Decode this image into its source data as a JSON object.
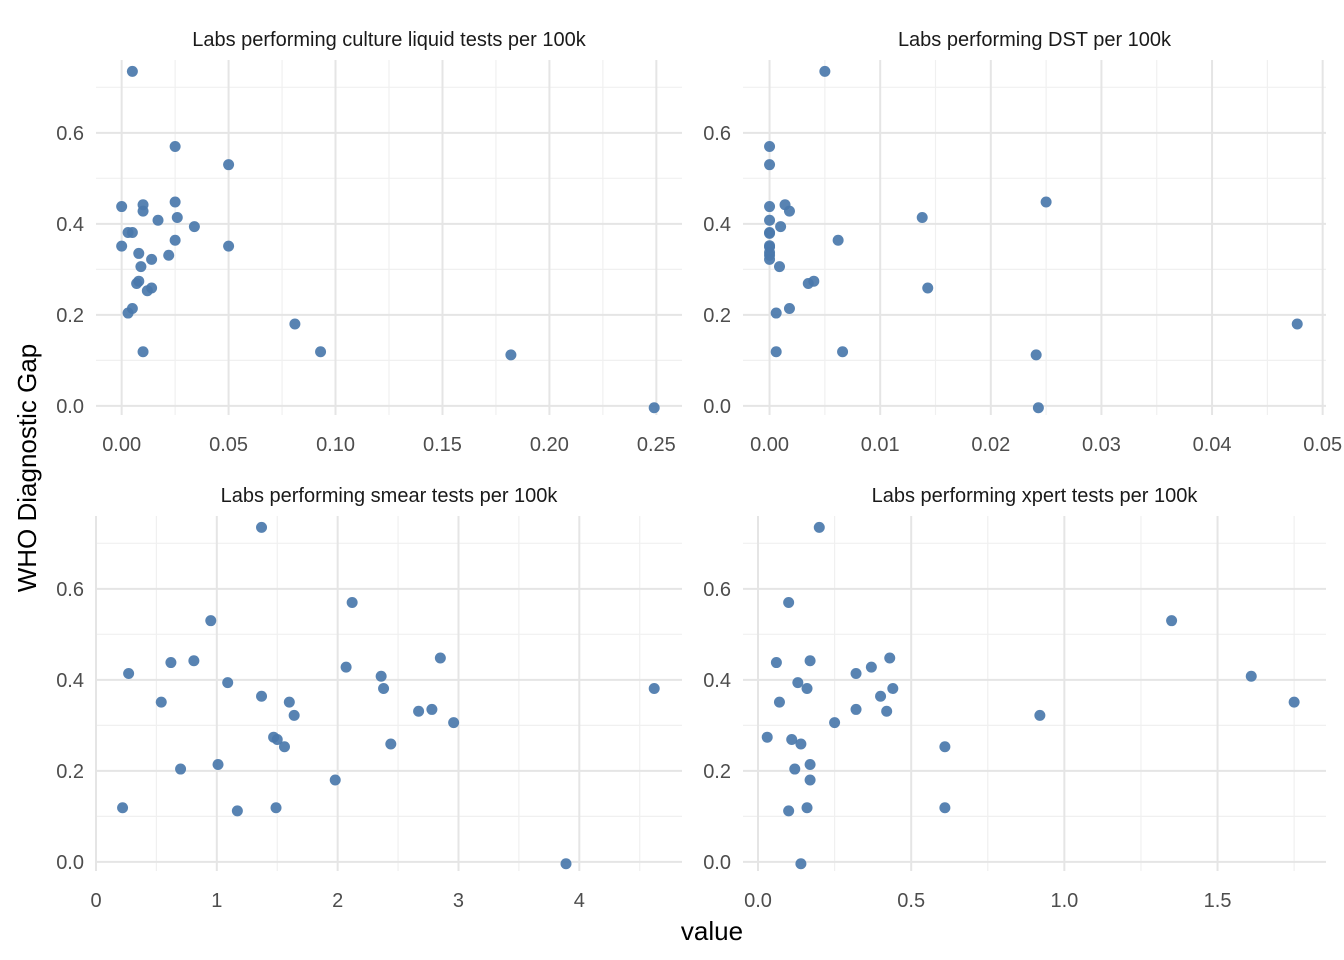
{
  "chart_data": {
    "type": "scatter",
    "xlabel": "value",
    "ylabel": "WHO Diagnostic Gap",
    "point_color": "#4a78ab",
    "grid": true,
    "y_ticks": [
      0.0,
      0.2,
      0.4,
      0.6
    ],
    "y_tick_labels": [
      "0.0",
      "0.2",
      "0.4",
      "0.6"
    ],
    "ylim": [
      -0.02,
      0.76
    ],
    "facets": [
      {
        "title": "Labs performing culture liquid tests per 100k",
        "xlim": [
          -0.012,
          0.262
        ],
        "x_ticks": [
          0,
          0.05,
          0.1,
          0.15,
          0.2,
          0.25
        ],
        "x_tick_labels": [
          "0.00",
          "0.05",
          "0.10",
          "0.15",
          "0.20",
          "0.25"
        ],
        "points": [
          [
            0.005,
            0.735
          ],
          [
            0.025,
            0.57
          ],
          [
            0.05,
            0.53
          ],
          [
            0.0,
            0.438
          ],
          [
            0.01,
            0.442
          ],
          [
            0.01,
            0.428
          ],
          [
            0.025,
            0.448
          ],
          [
            0.026,
            0.414
          ],
          [
            0.017,
            0.408
          ],
          [
            0.034,
            0.394
          ],
          [
            0.003,
            0.381
          ],
          [
            0.005,
            0.381
          ],
          [
            0.025,
            0.364
          ],
          [
            0.0,
            0.351
          ],
          [
            0.05,
            0.351
          ],
          [
            0.008,
            0.335
          ],
          [
            0.022,
            0.331
          ],
          [
            0.014,
            0.322
          ],
          [
            0.009,
            0.306
          ],
          [
            0.008,
            0.274
          ],
          [
            0.007,
            0.269
          ],
          [
            0.014,
            0.259
          ],
          [
            0.012,
            0.253
          ],
          [
            0.005,
            0.214
          ],
          [
            0.003,
            0.204
          ],
          [
            0.081,
            0.18
          ],
          [
            0.01,
            0.119
          ],
          [
            0.093,
            0.119
          ],
          [
            0.182,
            0.112
          ],
          [
            0.249,
            -0.004
          ]
        ]
      },
      {
        "title": "Labs performing DST per 100k",
        "xlim": [
          -0.0024,
          0.0503
        ],
        "x_ticks": [
          0,
          0.01,
          0.02,
          0.03,
          0.04,
          0.05
        ],
        "x_tick_labels": [
          "0.00",
          "0.01",
          "0.02",
          "0.03",
          "0.04",
          "0.05"
        ],
        "points": [
          [
            0.005,
            0.735
          ],
          [
            0.0,
            0.57
          ],
          [
            0.0,
            0.53
          ],
          [
            0.0,
            0.438
          ],
          [
            0.0014,
            0.442
          ],
          [
            0.0018,
            0.428
          ],
          [
            0.025,
            0.448
          ],
          [
            0.0138,
            0.414
          ],
          [
            0.0,
            0.408
          ],
          [
            0.001,
            0.394
          ],
          [
            0.0,
            0.381
          ],
          [
            0.0,
            0.379
          ],
          [
            0.0062,
            0.364
          ],
          [
            0.0,
            0.352
          ],
          [
            0.0,
            0.349
          ],
          [
            0.0,
            0.337
          ],
          [
            0.0,
            0.331
          ],
          [
            0.0,
            0.322
          ],
          [
            0.0009,
            0.306
          ],
          [
            0.004,
            0.274
          ],
          [
            0.0035,
            0.269
          ],
          [
            0.0143,
            0.259
          ],
          [
            0.0018,
            0.214
          ],
          [
            0.0006,
            0.204
          ],
          [
            0.0477,
            0.18
          ],
          [
            0.0006,
            0.119
          ],
          [
            0.0066,
            0.119
          ],
          [
            0.0241,
            0.112
          ],
          [
            0.0243,
            -0.004
          ]
        ]
      },
      {
        "title": "Labs performing smear tests per 100k",
        "xlim": [
          0,
          4.85
        ],
        "x_ticks": [
          0,
          1,
          2,
          3,
          4
        ],
        "x_tick_labels": [
          "0",
          "1",
          "2",
          "3",
          "4"
        ],
        "points": [
          [
            1.37,
            0.735
          ],
          [
            2.12,
            0.57
          ],
          [
            0.95,
            0.53
          ],
          [
            0.62,
            0.438
          ],
          [
            0.81,
            0.442
          ],
          [
            2.85,
            0.448
          ],
          [
            2.07,
            0.428
          ],
          [
            0.27,
            0.414
          ],
          [
            2.36,
            0.408
          ],
          [
            1.09,
            0.394
          ],
          [
            2.38,
            0.381
          ],
          [
            4.62,
            0.381
          ],
          [
            1.37,
            0.364
          ],
          [
            0.54,
            0.351
          ],
          [
            1.6,
            0.351
          ],
          [
            2.78,
            0.335
          ],
          [
            2.67,
            0.331
          ],
          [
            1.64,
            0.322
          ],
          [
            2.96,
            0.306
          ],
          [
            1.47,
            0.274
          ],
          [
            1.5,
            0.269
          ],
          [
            2.44,
            0.259
          ],
          [
            1.56,
            0.253
          ],
          [
            1.01,
            0.214
          ],
          [
            0.7,
            0.204
          ],
          [
            1.98,
            0.18
          ],
          [
            0.22,
            0.119
          ],
          [
            1.49,
            0.119
          ],
          [
            1.17,
            0.112
          ],
          [
            3.89,
            -0.004
          ]
        ]
      },
      {
        "title": "Labs performing xpert tests per 100k",
        "xlim": [
          -0.049,
          1.854
        ],
        "x_ticks": [
          0,
          0.5,
          1.0,
          1.5
        ],
        "x_tick_labels": [
          "0.0",
          "0.5",
          "1.0",
          "1.5"
        ],
        "points": [
          [
            0.2,
            0.735
          ],
          [
            0.1,
            0.57
          ],
          [
            1.35,
            0.53
          ],
          [
            0.06,
            0.438
          ],
          [
            0.17,
            0.442
          ],
          [
            0.43,
            0.448
          ],
          [
            0.37,
            0.428
          ],
          [
            0.32,
            0.414
          ],
          [
            1.61,
            0.408
          ],
          [
            0.13,
            0.394
          ],
          [
            0.16,
            0.381
          ],
          [
            0.44,
            0.381
          ],
          [
            0.4,
            0.364
          ],
          [
            0.07,
            0.351
          ],
          [
            1.75,
            0.351
          ],
          [
            0.32,
            0.335
          ],
          [
            0.42,
            0.331
          ],
          [
            0.92,
            0.322
          ],
          [
            0.25,
            0.306
          ],
          [
            0.03,
            0.274
          ],
          [
            0.11,
            0.269
          ],
          [
            0.14,
            0.259
          ],
          [
            0.61,
            0.253
          ],
          [
            0.17,
            0.214
          ],
          [
            0.12,
            0.204
          ],
          [
            0.17,
            0.18
          ],
          [
            0.16,
            0.119
          ],
          [
            0.61,
            0.119
          ],
          [
            0.1,
            0.112
          ],
          [
            0.14,
            -0.004
          ]
        ]
      }
    ]
  }
}
